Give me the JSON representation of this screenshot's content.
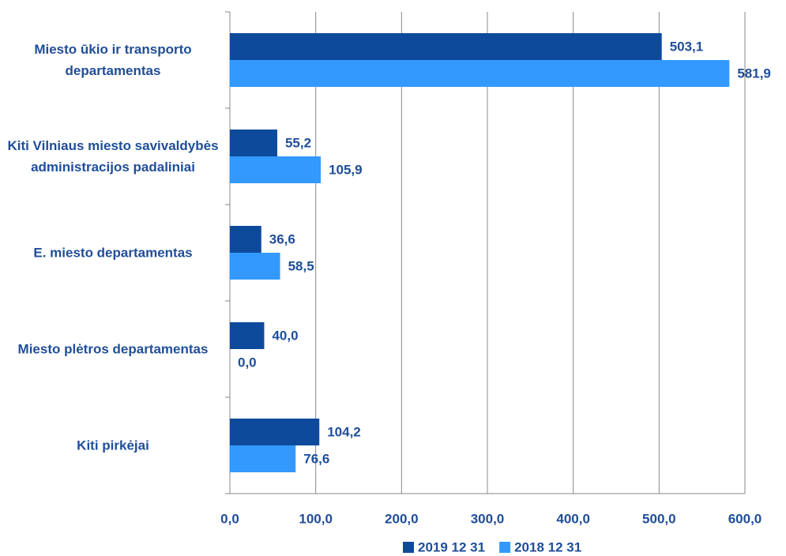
{
  "chart_data": {
    "type": "hbar",
    "categories": [
      "Miesto ūkio ir transporto departamentas",
      "Kiti Vilniaus miesto savivaldybės administracijos padaliniai",
      "E. miesto departamentas",
      "Miesto plėtros departamentas",
      "Kiti pirkėjai"
    ],
    "series": [
      {
        "name": "2019 12 31",
        "color": "#0d4a9c",
        "values": [
          503.1,
          55.2,
          36.6,
          40.0,
          104.2
        ],
        "value_labels": [
          "503,1",
          "55,2",
          "36,6",
          "40,0",
          "104,2"
        ]
      },
      {
        "name": "2018 12 31",
        "color": "#3399ff",
        "values": [
          581.9,
          105.9,
          58.5,
          0.0,
          76.6
        ],
        "value_labels": [
          "581,9",
          "105,9",
          "58,5",
          "0,0",
          "76,6"
        ]
      }
    ],
    "xlim": [
      0,
      600
    ],
    "xticks": [
      {
        "value": 0,
        "label": "0,0"
      },
      {
        "value": 100,
        "label": "100,0"
      },
      {
        "value": 200,
        "label": "200,0"
      },
      {
        "value": 300,
        "label": "300,0"
      },
      {
        "value": 400,
        "label": "400,0"
      },
      {
        "value": 500,
        "label": "500,0"
      },
      {
        "value": 600,
        "label": "600,0"
      }
    ],
    "grid": true,
    "legend": "bottom"
  }
}
